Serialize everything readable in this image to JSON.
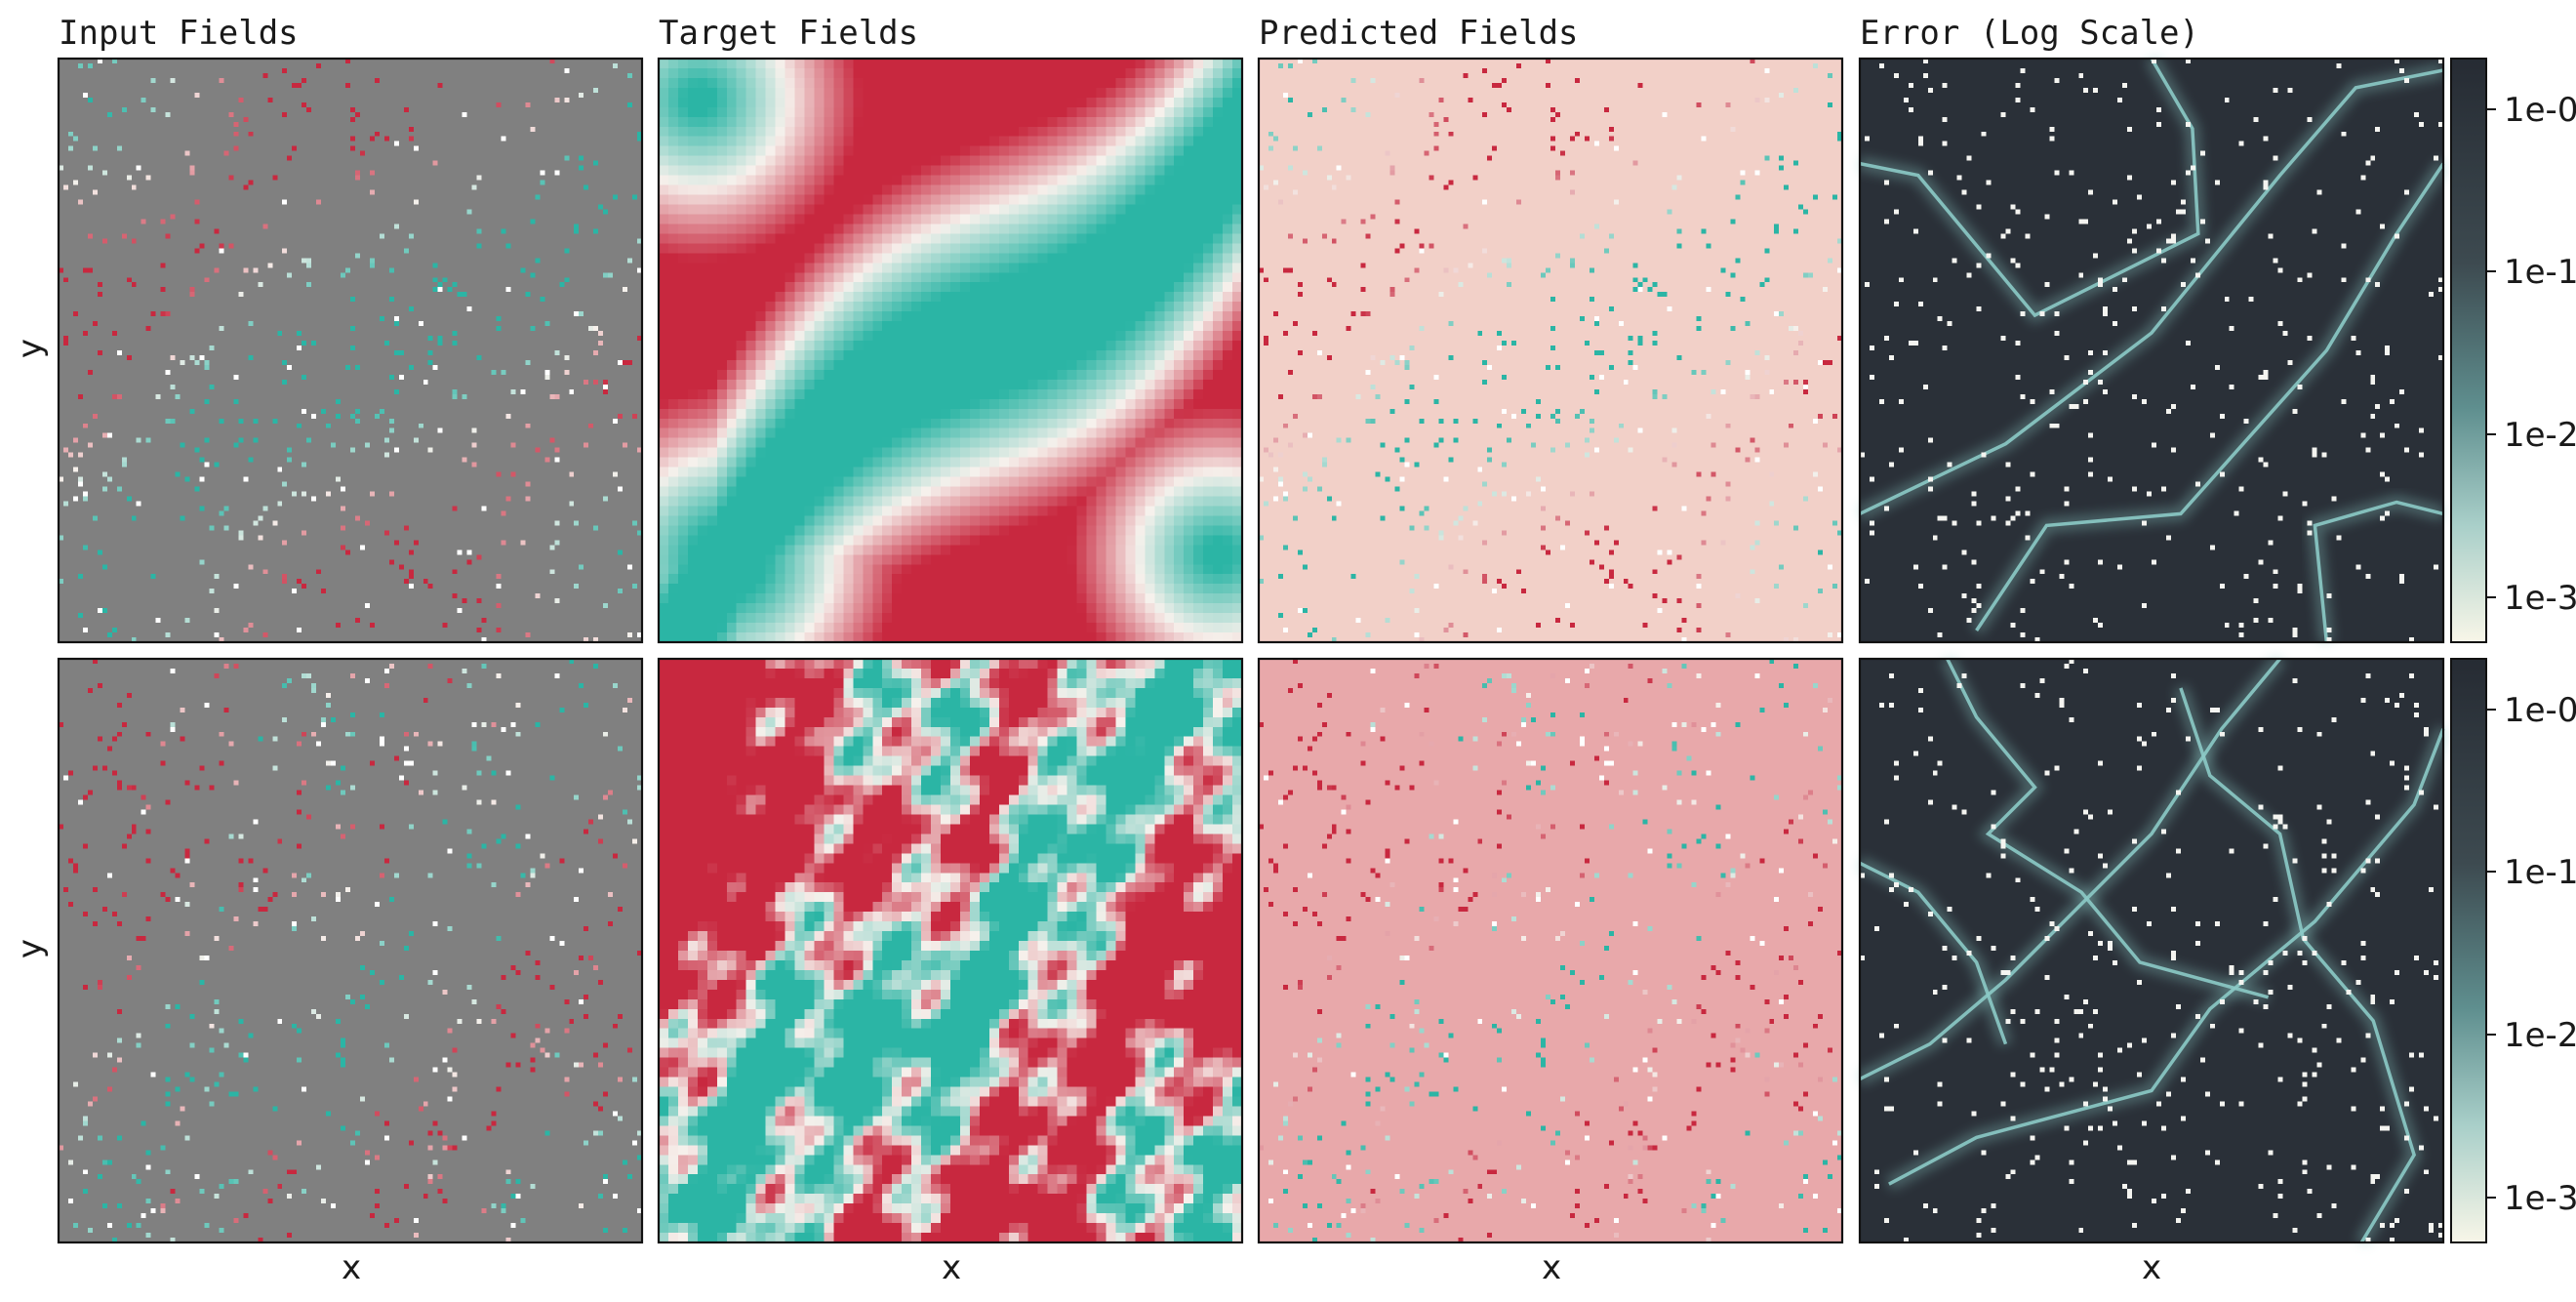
{
  "figure": {
    "column_titles": [
      "Input Fields",
      "Target Fields",
      "Predicted Fields",
      "Error (Log Scale)"
    ],
    "xlabel": "x",
    "ylabel": "y",
    "colorbar_ticks": [
      "1e-0",
      "1e-1",
      "1e-2",
      "1e-3"
    ]
  },
  "chart_data": [
    {
      "type": "heatmap",
      "row": 0,
      "panels": [
        {
          "name": "Input Fields",
          "content": "gray background with sparse colored observation pixels",
          "background": "#808080"
        },
        {
          "name": "Target Fields",
          "content": "smooth field: red regions with a diagonal teal band from lower-left to upper-right",
          "colors": {
            "negative": "#c8283f",
            "positive": "#2bb5a5",
            "zero": "#f6f1ec"
          }
        },
        {
          "name": "Predicted Fields",
          "content": "uniform light pink background with sparse colored pixels",
          "background": "#f2d0c8"
        },
        {
          "name": "Error (Log Scale)",
          "content": "dark background, glowing teal curves along field zero-crossings, scattered white pixels",
          "scale": "log",
          "colorbar": {
            "ticks": [
              "1e-0",
              "1e-1",
              "1e-2",
              "1e-3"
            ],
            "range": [
              0.0005,
              2
            ]
          }
        }
      ]
    },
    {
      "type": "heatmap",
      "row": 1,
      "panels": [
        {
          "name": "Input Fields",
          "content": "gray background with sparse colored observation pixels",
          "background": "#808080"
        },
        {
          "name": "Target Fields",
          "content": "rough fractal field: red regions with teal regions, noisy boundaries",
          "colors": {
            "negative": "#c8283f",
            "positive": "#2bb5a5",
            "zero": "#f6f1ec"
          }
        },
        {
          "name": "Predicted Fields",
          "content": "uniform pink background with sparse colored pixels",
          "background": "#e8a8aa"
        },
        {
          "name": "Error (Log Scale)",
          "content": "dark background, tangled teal curves along field zero-crossings, scattered white pixels",
          "scale": "log",
          "colorbar": {
            "ticks": [
              "1e-0",
              "1e-1",
              "1e-2",
              "1e-3"
            ],
            "range": [
              0.0005,
              2
            ]
          }
        }
      ]
    }
  ],
  "colors": {
    "input_background": "#808080",
    "pred_bg_row0": "#f2d0c8",
    "pred_bg_row1": "#e8a8aa",
    "error_background": "#2a3038",
    "error_curve": "#8ccac6",
    "red": "#c8283f",
    "teal": "#2bb5a5",
    "cream": "#f6f1ec"
  }
}
